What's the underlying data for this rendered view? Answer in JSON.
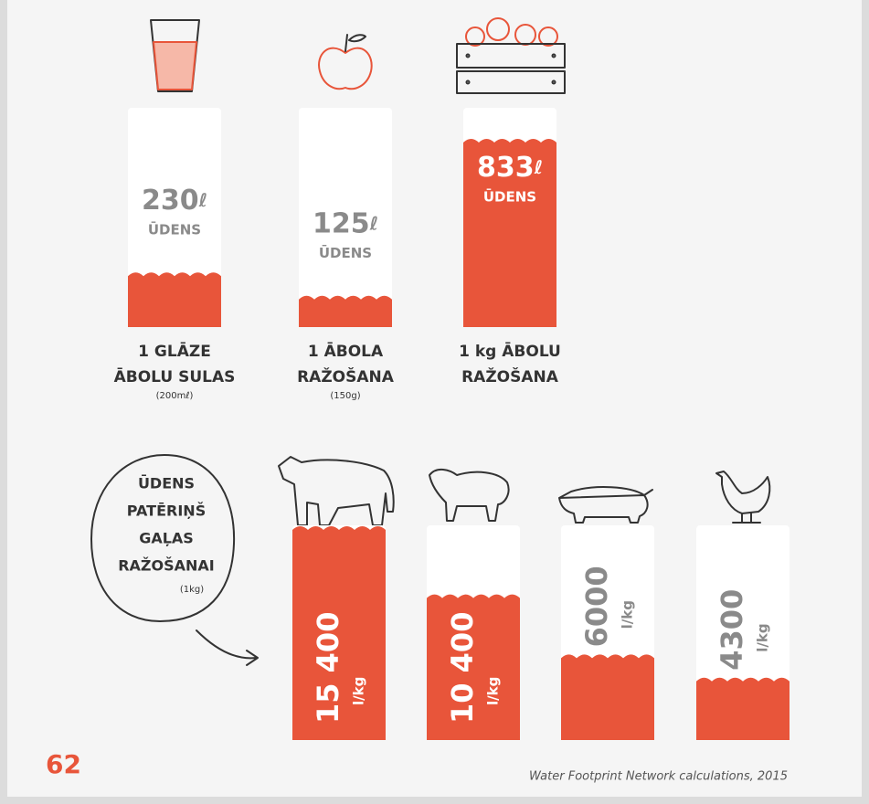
{
  "top_items": [
    {
      "amount": "230",
      "unit": "ℓ",
      "word": "ŪDENS",
      "label_lines": [
        "1 GLĀZE",
        "ĀBOLU SULAS"
      ],
      "note": "(200mℓ)"
    },
    {
      "amount": "125",
      "unit": "ℓ",
      "word": "ŪDENS",
      "label_lines": [
        "1 ĀBOLA",
        "RAŽOŠANA"
      ],
      "note": "(150g)"
    },
    {
      "amount": "833",
      "unit": "ℓ",
      "word": "ŪDENS",
      "label_lines": [
        "1 kg ĀBOLU",
        "RAŽOŠANA"
      ]
    }
  ],
  "bubble": {
    "lines": [
      "ŪDENS",
      "PATĒRIŅŠ",
      "GAĻAS",
      "RAŽOŠANAI"
    ],
    "note": "(1kg)"
  },
  "bottom_items": [
    {
      "amount": "15 400",
      "unit": "l/kg"
    },
    {
      "amount": "10 400",
      "unit": "l/kg"
    },
    {
      "amount": "6000",
      "unit": "l/kg"
    },
    {
      "amount": "4300",
      "unit": "l/kg"
    }
  ],
  "page_number": "62",
  "source": "Water Footprint Network calculations, 2015"
}
